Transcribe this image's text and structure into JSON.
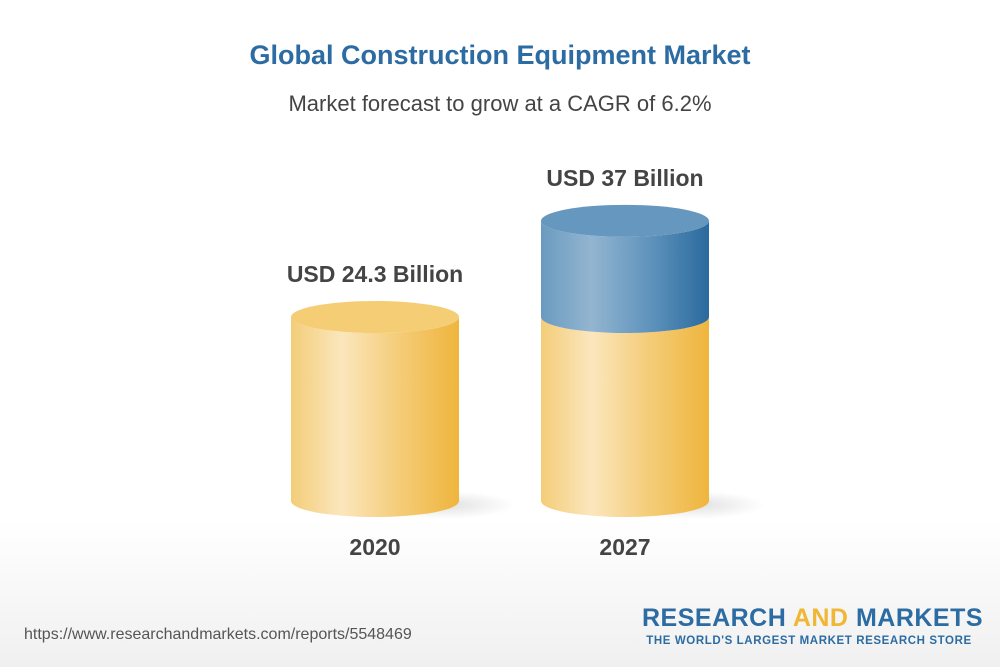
{
  "chart_data": {
    "type": "bar",
    "style": "3d-cylinder",
    "title": "Global Construction Equipment Market",
    "subtitle": "Market forecast to grow at a CAGR of 6.2%",
    "categories": [
      "2020",
      "2027"
    ],
    "values": [
      24.3,
      37
    ],
    "data_labels": [
      "USD 24.3 Billion",
      "USD 37 Billion"
    ],
    "unit": "USD Billion",
    "colors": {
      "base": "#f2c45a",
      "growth": "#3d7aab"
    },
    "grid": false
  },
  "footer": {
    "url": "https://www.researchandmarkets.com/reports/5548469",
    "logo_part1": "RESEARCH ",
    "logo_part2": "AND",
    "logo_part3": " MARKETS",
    "tagline": "THE WORLD'S LARGEST MARKET RESEARCH STORE"
  }
}
